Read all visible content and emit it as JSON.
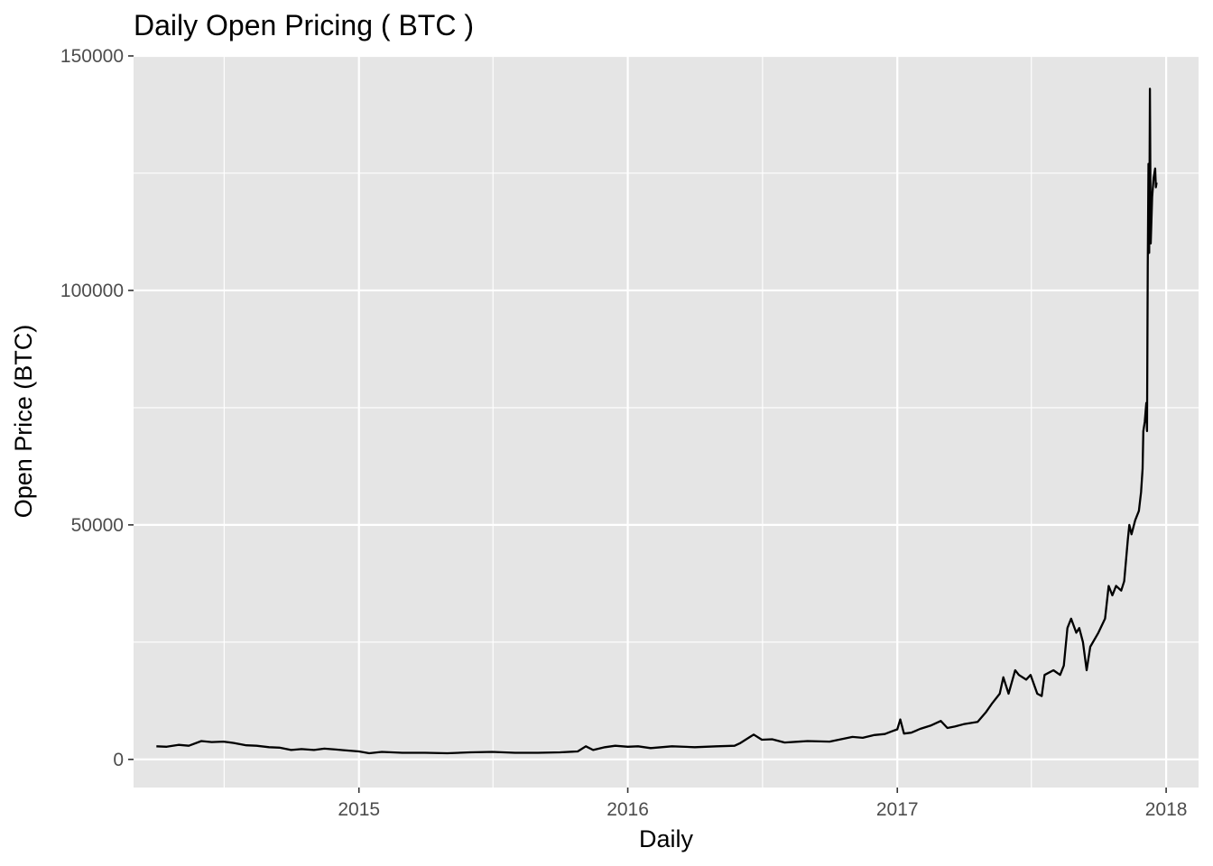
{
  "chart_data": {
    "type": "line",
    "title": "Daily Open Pricing ( BTC )",
    "xlabel": "Daily",
    "ylabel": "Open Price (BTC)",
    "xlim": [
      "2014-03-01",
      "2018-02-14"
    ],
    "ylim": [
      -6000,
      150000
    ],
    "x_ticks": [
      "2015",
      "2016",
      "2017",
      "2018"
    ],
    "y_ticks": [
      "0",
      "50000",
      "100000",
      "150000"
    ],
    "grid": true,
    "legend": "none",
    "colors": {
      "panel": "#e5e5e5",
      "grid": "#ffffff",
      "line": "#000000",
      "tick_text": "#4d4d4d"
    },
    "series": [
      {
        "x": [
          "2014-04-01",
          "2014-04-15",
          "2014-05-01",
          "2014-05-15",
          "2014-06-01",
          "2014-06-15",
          "2014-07-01",
          "2014-07-15",
          "2014-08-01",
          "2014-08-15",
          "2014-09-01",
          "2014-09-15",
          "2014-10-01",
          "2014-10-15",
          "2014-11-01",
          "2014-11-15",
          "2014-12-01",
          "2014-12-15",
          "2015-01-01",
          "2015-01-15",
          "2015-02-01",
          "2015-03-01",
          "2015-04-01",
          "2015-05-01",
          "2015-06-01",
          "2015-07-01",
          "2015-08-01",
          "2015-09-01",
          "2015-10-01",
          "2015-10-25",
          "2015-11-05",
          "2015-11-15",
          "2015-12-01",
          "2015-12-15",
          "2016-01-01",
          "2016-01-15",
          "2016-02-01",
          "2016-03-01",
          "2016-04-01",
          "2016-05-01",
          "2016-05-25",
          "2016-06-01",
          "2016-06-15",
          "2016-06-20",
          "2016-07-01",
          "2016-07-15",
          "2016-08-01",
          "2016-09-01",
          "2016-10-01",
          "2016-11-01",
          "2016-11-15",
          "2016-12-01",
          "2016-12-15",
          "2016-12-25",
          "2017-01-01",
          "2017-01-05",
          "2017-01-10",
          "2017-01-20",
          "2017-02-01",
          "2017-02-15",
          "2017-03-01",
          "2017-03-10",
          "2017-03-20",
          "2017-04-01",
          "2017-04-20",
          "2017-05-01",
          "2017-05-10",
          "2017-05-20",
          "2017-05-25",
          "2017-06-01",
          "2017-06-10",
          "2017-06-15",
          "2017-06-25",
          "2017-07-01",
          "2017-07-10",
          "2017-07-16",
          "2017-07-20",
          "2017-08-01",
          "2017-08-10",
          "2017-08-15",
          "2017-08-20",
          "2017-08-25",
          "2017-09-01",
          "2017-09-05",
          "2017-09-10",
          "2017-09-15",
          "2017-09-20",
          "2017-10-01",
          "2017-10-10",
          "2017-10-15",
          "2017-10-20",
          "2017-10-25",
          "2017-11-01",
          "2017-11-05",
          "2017-11-10",
          "2017-11-12",
          "2017-11-15",
          "2017-11-20",
          "2017-11-25",
          "2017-11-28",
          "2017-11-30",
          "2017-12-01",
          "2017-12-03",
          "2017-12-05",
          "2017-12-06",
          "2017-12-07",
          "2017-12-08",
          "2017-12-09",
          "2017-12-10",
          "2017-12-11",
          "2017-12-13",
          "2017-12-15",
          "2017-12-17",
          "2017-12-18",
          "2017-12-19"
        ],
        "y": [
          2800,
          2700,
          3100,
          2900,
          3900,
          3700,
          3800,
          3500,
          3000,
          2900,
          2600,
          2500,
          2000,
          2200,
          2000,
          2300,
          2100,
          1900,
          1700,
          1300,
          1600,
          1400,
          1400,
          1300,
          1500,
          1600,
          1400,
          1400,
          1500,
          1700,
          2800,
          2000,
          2600,
          2900,
          2700,
          2800,
          2400,
          2800,
          2600,
          2800,
          2900,
          3400,
          4800,
          5300,
          4200,
          4300,
          3600,
          3900,
          3800,
          4800,
          4600,
          5200,
          5400,
          6000,
          6400,
          8500,
          5500,
          5700,
          6500,
          7200,
          8200,
          6700,
          7000,
          7500,
          8000,
          10000,
          12000,
          14000,
          17500,
          14000,
          19000,
          18000,
          17000,
          18000,
          14000,
          13500,
          18000,
          19000,
          18000,
          20000,
          28000,
          30000,
          27000,
          28000,
          25000,
          19000,
          24000,
          27000,
          30000,
          37000,
          35000,
          37000,
          36000,
          38000,
          47000,
          50000,
          48000,
          51000,
          53000,
          57000,
          62000,
          70000,
          72000,
          76000,
          70000,
          105000,
          127000,
          108000,
          143000,
          110000,
          120000,
          124000,
          126000,
          122000,
          123000
        ]
      }
    ]
  }
}
